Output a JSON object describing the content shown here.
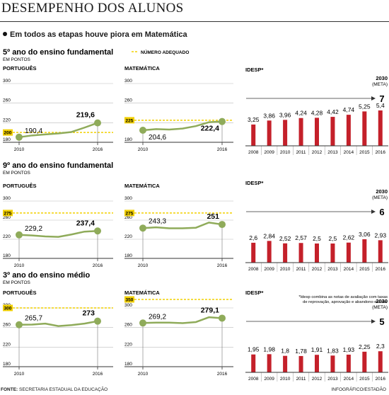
{
  "title": "DESEMPENHO DOS ALUNOS",
  "subtitle": "Em todos as etapas houve piora em Matemática",
  "source_label": "FONTE:",
  "source": "SECRETARIA ESTADUAL DA EDUCAÇÃO",
  "credit": "INFOGRÁFICO/ESTADÃO",
  "legend_adequate": "NÚMERO ADEQUADO",
  "colors": {
    "line": "#8fab5a",
    "bar": "#c4202a",
    "adequate": "#f2d000",
    "axis": "#333333"
  },
  "sections": [
    {
      "title": "5º ano do ensino fundamental",
      "unit": "EM PONTOS"
    },
    {
      "title": "9º ano do ensino fundamental",
      "unit": "EM PONTOS"
    },
    {
      "title": "3º ano do ensino médio",
      "unit": "EM PONTOS"
    }
  ],
  "idesp_footnote": [
    "*Idesp combina as notas de avaliação com taxas",
    "de reprovação, aprovação e abandono escolar"
  ],
  "chart_data": [
    {
      "type": "line",
      "section": 0,
      "subject": "PORTUGUÊS",
      "x_ticks": [
        "2010",
        "2016"
      ],
      "yticks": [
        180,
        220,
        260,
        300
      ],
      "ylim": [
        180,
        300
      ],
      "x": [
        2010,
        2011,
        2012,
        2013,
        2014,
        2015,
        2016
      ],
      "values": [
        190.4,
        194,
        196,
        198,
        201,
        210,
        219.6
      ],
      "labels": {
        "start": "190,4",
        "end": "219,6"
      },
      "adequate": {
        "value": 200,
        "label": "200"
      }
    },
    {
      "type": "line",
      "section": 0,
      "subject": "MATEMÁTICA",
      "x_ticks": [
        "2010",
        "2016"
      ],
      "yticks": [
        180,
        220,
        260,
        300
      ],
      "ylim": [
        180,
        300
      ],
      "x": [
        2010,
        2011,
        2012,
        2013,
        2014,
        2015,
        2016
      ],
      "values": [
        204.6,
        207,
        206,
        208,
        213,
        221,
        222.4
      ],
      "labels": {
        "start": "204,6",
        "end": "222,4"
      },
      "adequate": {
        "value": 225,
        "label": "225"
      }
    },
    {
      "type": "bar",
      "section": 0,
      "title": "IDESP*",
      "categories": [
        "2008",
        "2009",
        "2010",
        "2011",
        "2012",
        "2013",
        "2014",
        "2015",
        "2016"
      ],
      "values": [
        3.25,
        3.86,
        3.96,
        4.24,
        4.28,
        4.42,
        4.74,
        5.25,
        5.4
      ],
      "labels": [
        "3,25",
        "3,86",
        "3,96",
        "4,24",
        "4,28",
        "4,42",
        "4,74",
        "5,25",
        "5,4"
      ],
      "goal": {
        "label": "2030",
        "sublabel": "(META)",
        "value": "7"
      },
      "ylim": [
        0,
        7
      ]
    },
    {
      "type": "line",
      "section": 1,
      "subject": "PORTUGUÊS",
      "x_ticks": [
        "2010",
        "2016"
      ],
      "yticks": [
        180,
        220,
        260,
        300
      ],
      "ylim": [
        180,
        300
      ],
      "x": [
        2010,
        2011,
        2012,
        2013,
        2014,
        2015,
        2016
      ],
      "values": [
        229.2,
        228,
        226,
        225,
        230,
        236,
        237.4
      ],
      "labels": {
        "start": "229,2",
        "end": "237,4"
      },
      "adequate": {
        "value": 275,
        "label": "275"
      }
    },
    {
      "type": "line",
      "section": 1,
      "subject": "MATEMÁTICA",
      "x_ticks": [
        "2010",
        "2016"
      ],
      "yticks": [
        180,
        220,
        260,
        300
      ],
      "ylim": [
        180,
        300
      ],
      "x": [
        2010,
        2011,
        2012,
        2013,
        2014,
        2015,
        2016
      ],
      "values": [
        243.3,
        245,
        243,
        243,
        244,
        255,
        251
      ],
      "labels": {
        "start": "243,3",
        "end": "251"
      },
      "adequate": {
        "value": 275,
        "label": "275"
      }
    },
    {
      "type": "bar",
      "section": 1,
      "title": "IDESP*",
      "categories": [
        "2008",
        "2009",
        "2010",
        "2011",
        "2012",
        "2013",
        "2014",
        "2015",
        "2016"
      ],
      "values": [
        2.6,
        2.84,
        2.52,
        2.57,
        2.5,
        2.5,
        2.62,
        3.06,
        2.93
      ],
      "labels": [
        "2,6",
        "2,84",
        "2,52",
        "2,57",
        "2,5",
        "2,5",
        "2,62",
        "3,06",
        "2,93"
      ],
      "goal": {
        "label": "2030",
        "sublabel": "(META)",
        "value": "6"
      },
      "ylim": [
        0,
        6
      ]
    },
    {
      "type": "line",
      "section": 2,
      "subject": "PORTUGUÊS",
      "x_ticks": [
        "2010",
        "2016"
      ],
      "yticks": [
        180,
        220,
        260,
        300
      ],
      "ylim": [
        180,
        300
      ],
      "x": [
        2010,
        2011,
        2012,
        2013,
        2014,
        2015,
        2016
      ],
      "values": [
        265.7,
        266,
        268,
        263,
        265,
        268,
        273
      ],
      "labels": {
        "start": "265,7",
        "end": "273"
      },
      "adequate": {
        "value": 300,
        "label": "300"
      }
    },
    {
      "type": "line",
      "section": 2,
      "subject": "MATEMÁTICA",
      "x_ticks": [
        "2010",
        "2016"
      ],
      "yticks": [
        180,
        220,
        260,
        300
      ],
      "ylim": [
        180,
        300
      ],
      "x": [
        2010,
        2011,
        2012,
        2013,
        2014,
        2015,
        2016
      ],
      "values": [
        269.2,
        270,
        270,
        269,
        271,
        281,
        279.1
      ],
      "labels": {
        "start": "269,2",
        "end": "279,1"
      },
      "adequate": {
        "value": 350,
        "label": "350"
      }
    },
    {
      "type": "bar",
      "section": 2,
      "title": "IDESP*",
      "categories": [
        "2008",
        "2009",
        "2010",
        "2011",
        "2012",
        "2013",
        "2014",
        "2015",
        "2016"
      ],
      "values": [
        1.95,
        1.98,
        1.8,
        1.78,
        1.91,
        1.83,
        1.93,
        2.25,
        2.3
      ],
      "labels": [
        "1,95",
        "1,98",
        "1,8",
        "1,78",
        "1,91",
        "1,83",
        "1,93",
        "2,25",
        "2,3"
      ],
      "goal": {
        "label": "2030",
        "sublabel": "(META)",
        "value": "5"
      },
      "ylim": [
        0,
        5
      ]
    }
  ]
}
